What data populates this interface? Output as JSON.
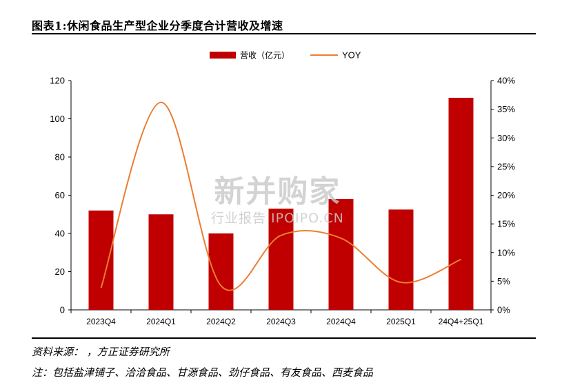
{
  "title": "图表1:休闲食品生产型企业分季度合计营收及增速",
  "source_note": "资料来源：      ，方正证券研究所",
  "footnote": "注：包括盐津铺子、洽洽食品、甘源食品、劲仔食品、有友食品、西麦食品",
  "watermark": {
    "main": "新并购家",
    "sub": "行业报告 IPOIPO.CN"
  },
  "chart_data": {
    "type": "bar",
    "categories": [
      "2023Q4",
      "2024Q1",
      "2024Q2",
      "2024Q3",
      "2024Q4",
      "2025Q1",
      "24Q4+25Q1"
    ],
    "series": [
      {
        "name": "营收（亿元）",
        "type": "bar",
        "axis": "left",
        "color": "#C00000",
        "values": [
          52,
          50,
          40,
          53,
          58,
          52.5,
          111
        ]
      },
      {
        "name": "YOY",
        "type": "line",
        "axis": "right",
        "color": "#ED7D31",
        "values": [
          0.038,
          0.362,
          0.042,
          0.13,
          0.125,
          0.048,
          0.088
        ]
      }
    ],
    "left_axis": {
      "ylim": [
        0,
        120
      ],
      "ticks": [
        "0",
        "20",
        "40",
        "60",
        "80",
        "100",
        "120"
      ]
    },
    "right_axis": {
      "ylim": [
        0,
        0.4
      ],
      "ticks": [
        "0%",
        "5%",
        "10%",
        "15%",
        "20%",
        "25%",
        "30%",
        "35%",
        "40%"
      ]
    },
    "legend_position": "top-center",
    "grid": false
  }
}
